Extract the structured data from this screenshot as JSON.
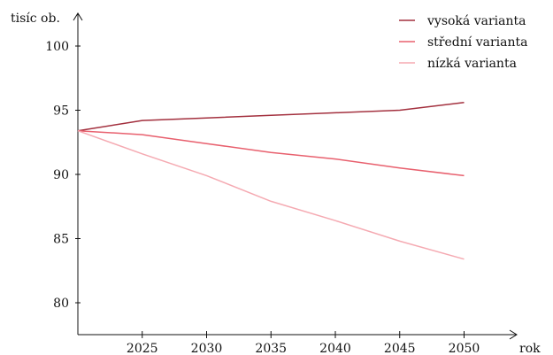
{
  "chart_data": {
    "type": "line",
    "xlabel": "rok",
    "ylabel": "tisíc ob.",
    "x": [
      2020,
      2025,
      2030,
      2035,
      2040,
      2045,
      2050
    ],
    "x_ticks": [
      "2025",
      "2030",
      "2035",
      "2040",
      "2045",
      "2050"
    ],
    "y_ticks": [
      "80",
      "85",
      "90",
      "95",
      "100"
    ],
    "xlim": [
      2020,
      2054
    ],
    "ylim": [
      77.5,
      102.5
    ],
    "grid": false,
    "legend_position": "top-right",
    "series": [
      {
        "name": "vysoká varianta",
        "color": "#a3303e",
        "values": [
          93.4,
          94.2,
          94.4,
          94.6,
          94.8,
          95.0,
          95.6
        ]
      },
      {
        "name": "střední varianta",
        "color": "#e8606e",
        "values": [
          93.4,
          93.1,
          92.4,
          91.7,
          91.2,
          90.5,
          89.9
        ]
      },
      {
        "name": "nízká varianta",
        "color": "#f5aab2",
        "values": [
          93.4,
          91.6,
          89.9,
          87.9,
          86.4,
          84.8,
          83.4
        ]
      }
    ]
  }
}
